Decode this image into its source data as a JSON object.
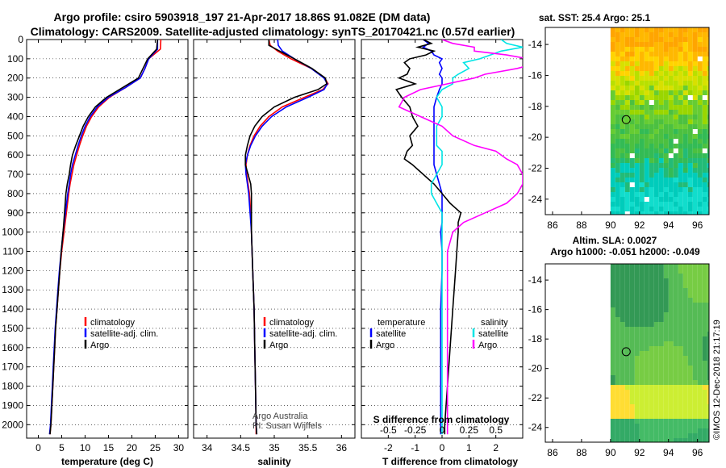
{
  "header": {
    "line1": "Argo profile: csiro 5903918_197 21-Apr-2017 18.86S 91.082E (DM data)",
    "line2": "Climatology: CARS2009. Satellite-adjusted climatology: synTS_20170421.nc (0.57d earlier)"
  },
  "colors": {
    "climatology": "#ff0000",
    "satellite": "#0000ff",
    "argo": "#000000",
    "s_satellite": "#00e5e5",
    "s_argo": "#ff00ff"
  },
  "chart_data": [
    {
      "type": "line",
      "title": "",
      "xlabel": "temperature (deg C)",
      "xticks": [
        0,
        5,
        10,
        15,
        20,
        25,
        30
      ],
      "xlim": [
        -2.5,
        32
      ],
      "ylim": [
        2070,
        0
      ],
      "yticks": [
        0,
        100,
        200,
        300,
        400,
        500,
        600,
        700,
        800,
        900,
        1000,
        1100,
        1200,
        1300,
        1400,
        1500,
        1600,
        1700,
        1800,
        1900,
        2000
      ],
      "legend": {
        "placement": "lower-center",
        "items": [
          {
            "label": "climatology",
            "color": "#ff0000"
          },
          {
            "label": "satellite-adj. clim.",
            "color": "#0000ff"
          },
          {
            "label": "Argo",
            "color": "#000000"
          }
        ]
      },
      "depth": [
        0,
        50,
        100,
        150,
        200,
        250,
        300,
        350,
        400,
        450,
        500,
        550,
        600,
        650,
        700,
        750,
        800,
        900,
        1000,
        1100,
        1200,
        1300,
        1400,
        1500,
        1600,
        1700,
        1800,
        1900,
        2000,
        2050
      ],
      "series": [
        {
          "name": "climatology",
          "color": "#ff0000",
          "values": [
            26.2,
            26.1,
            23.6,
            22.8,
            21.8,
            18.6,
            15.2,
            12.9,
            11.4,
            10.3,
            9.5,
            8.8,
            8.2,
            7.6,
            7.2,
            6.8,
            6.5,
            6.0,
            5.5,
            5.0,
            4.6,
            4.3,
            4.0,
            3.7,
            3.5,
            3.3,
            3.1,
            2.9,
            2.7,
            2.5
          ]
        },
        {
          "name": "satellite-adj. clim.",
          "color": "#0000ff",
          "values": [
            25.5,
            25.5,
            23.6,
            22.8,
            21.8,
            18.6,
            15.0,
            12.6,
            11.1,
            10.0,
            9.2,
            8.5,
            7.9,
            7.3,
            6.9,
            6.6,
            6.3,
            5.8,
            5.3,
            4.9,
            4.5,
            4.2,
            3.9,
            3.6,
            3.4,
            3.2,
            3.0,
            2.8,
            2.6,
            2.4
          ]
        },
        {
          "name": "Argo",
          "color": "#000000",
          "values": [
            25.5,
            25.3,
            23.4,
            22.4,
            21.4,
            18.0,
            14.6,
            12.2,
            10.7,
            9.6,
            8.8,
            8.0,
            7.3,
            6.9,
            6.6,
            6.2,
            5.9,
            5.6,
            5.3,
            4.9,
            4.6,
            4.3,
            4.0,
            3.7,
            3.5,
            3.3,
            3.1,
            2.9,
            2.7,
            2.5
          ]
        }
      ]
    },
    {
      "type": "line",
      "title": "",
      "xlabel": "salinity",
      "xticks": [
        34,
        34.5,
        35,
        35.5,
        36
      ],
      "xlim": [
        33.8,
        36.2
      ],
      "ylim": [
        2070,
        0
      ],
      "legend": {
        "placement": "lower-center",
        "items": [
          {
            "label": "climatology",
            "color": "#ff0000"
          },
          {
            "label": "satellite-adj. clim.",
            "color": "#0000ff"
          },
          {
            "label": "Argo",
            "color": "#000000"
          }
        ]
      },
      "annotation": [
        "Argo Australia",
        "PI: Susan Wijffels"
      ],
      "depth": [
        0,
        30,
        60,
        100,
        150,
        200,
        230,
        260,
        300,
        350,
        400,
        450,
        500,
        550,
        600,
        650,
        700,
        750,
        800,
        900,
        1000,
        1200,
        1400,
        1600,
        1800,
        2000,
        2050
      ],
      "series": [
        {
          "name": "climatology",
          "color": "#ff0000",
          "values": [
            34.92,
            34.94,
            35.05,
            35.25,
            35.55,
            35.75,
            35.8,
            35.72,
            35.45,
            35.12,
            34.92,
            34.79,
            34.7,
            34.64,
            34.6,
            34.58,
            34.59,
            34.61,
            34.63,
            34.65,
            34.66,
            34.68,
            34.7,
            34.71,
            34.72,
            34.73,
            34.73
          ]
        },
        {
          "name": "satellite-adj. clim.",
          "color": "#0000ff",
          "values": [
            35.05,
            35.06,
            35.12,
            35.3,
            35.55,
            35.74,
            35.79,
            35.74,
            35.5,
            35.18,
            34.96,
            34.82,
            34.72,
            34.65,
            34.6,
            34.57,
            34.58,
            34.6,
            34.62,
            34.64,
            34.66,
            34.68,
            34.7,
            34.71,
            34.72,
            34.73,
            34.74
          ]
        },
        {
          "name": "Argo",
          "color": "#000000",
          "values": [
            34.92,
            34.92,
            35.08,
            35.3,
            35.56,
            35.76,
            35.78,
            35.65,
            35.3,
            35.0,
            34.82,
            34.71,
            34.64,
            34.6,
            34.57,
            34.57,
            34.61,
            34.65,
            34.66,
            34.66,
            34.66,
            34.68,
            34.7,
            34.71,
            34.72,
            34.73,
            34.74
          ]
        }
      ]
    },
    {
      "type": "line",
      "title": "",
      "xlabel": "T difference from climatology",
      "xlabel2": "S difference from climatology",
      "xticks": [
        -2,
        -1,
        0,
        1,
        2
      ],
      "xticks2": [
        -0.5,
        -0.25,
        0,
        0.25,
        0.5
      ],
      "xlim": [
        -3,
        3
      ],
      "ylim": [
        2070,
        0
      ],
      "legend_left": {
        "title": "temperature",
        "items": [
          {
            "label": "satellite",
            "color": "#0000ff"
          },
          {
            "label": "Argo",
            "color": "#000000"
          }
        ]
      },
      "legend_right": {
        "title": "salinity",
        "items": [
          {
            "label": "satellite",
            "color": "#00e5e5"
          },
          {
            "label": "Argo",
            "color": "#ff00ff"
          }
        ]
      },
      "depth": [
        0,
        20,
        40,
        60,
        80,
        100,
        120,
        150,
        180,
        200,
        230,
        260,
        300,
        350,
        400,
        450,
        500,
        550,
        580,
        620,
        650,
        700,
        750,
        800,
        850,
        900,
        950,
        1000,
        1100,
        1200,
        1400,
        1600,
        1800,
        2000,
        2050
      ],
      "series": [
        {
          "name": "T satellite",
          "color": "#0000ff",
          "values": [
            -0.7,
            -0.5,
            -0.7,
            -0.4,
            -0.3,
            0.0,
            -0.1,
            0.0,
            -0.1,
            0.0,
            0.0,
            -0.1,
            -0.2,
            -0.3,
            -0.3,
            -0.3,
            -0.3,
            -0.3,
            -0.3,
            -0.3,
            -0.3,
            -0.2,
            -0.1,
            0.0,
            0.0,
            0.0,
            0.0,
            -0.05,
            0.0,
            0.0,
            -0.05,
            -0.05,
            -0.05,
            -0.05,
            -0.05
          ]
        },
        {
          "name": "T Argo",
          "color": "#000000",
          "values": [
            -0.7,
            -0.4,
            -0.9,
            -0.3,
            -0.6,
            -1.2,
            -1.4,
            -1.2,
            -1.3,
            -1.6,
            -1.0,
            -1.7,
            -1.5,
            -1.2,
            -1.1,
            -0.9,
            -1.2,
            -1.1,
            -1.3,
            -1.4,
            -1.1,
            -0.7,
            -0.3,
            0.0,
            0.3,
            0.7,
            0.6,
            0.6,
            0.55,
            0.5,
            0.4,
            0.3,
            0.2,
            0.1,
            0.1
          ]
        },
        {
          "name": "S satellite",
          "color": "#00e5e5",
          "values": [
            0.55,
            0.6,
            0.75,
            0.55,
            0.45,
            0.35,
            0.2,
            0.25,
            0.15,
            0.1,
            0.1,
            0.0,
            -0.05,
            0.0,
            0.0,
            -0.05,
            -0.05,
            -0.05,
            0.0,
            0.0,
            0.0,
            -0.05,
            -0.1,
            -0.1,
            -0.05,
            0.0,
            0.0,
            0.0,
            0.0,
            0.0,
            0.0,
            0.0,
            0.0,
            0.0,
            0.0
          ]
        },
        {
          "name": "S Argo",
          "color": "#ff00ff",
          "values": [
            0.0,
            0.1,
            0.3,
            0.3,
            0.6,
            0.8,
            0.9,
            0.7,
            0.4,
            0.3,
            0.05,
            -0.2,
            -0.35,
            -0.4,
            -0.2,
            0.0,
            0.1,
            0.3,
            0.5,
            0.6,
            0.7,
            0.75,
            0.75,
            0.7,
            0.6,
            0.4,
            0.2,
            0.1,
            0.05,
            0.05,
            0.05,
            0.05,
            0.05,
            0.05,
            0.05
          ]
        }
      ]
    },
    {
      "type": "heatmap",
      "title": "sat. SST: 25.4 Argo: 25.1",
      "xticks": [
        86,
        88,
        90,
        92,
        94,
        96
      ],
      "yticks": [
        -14,
        -16,
        -18,
        -20,
        -22,
        -24
      ],
      "xlim": [
        85.5,
        96.8
      ],
      "ylim": [
        -25,
        -12.9
      ],
      "data_lon_min": 90,
      "marker": {
        "lon": 91.082,
        "lat": -18.86
      }
    },
    {
      "type": "heatmap",
      "title": "Altim. SLA: 0.0027",
      "subtitle": "Argo h1000: -0.051 h2000: -0.049",
      "xticks": [
        86,
        88,
        90,
        92,
        94,
        96
      ],
      "yticks": [
        -14,
        -16,
        -18,
        -20,
        -22,
        -24
      ],
      "xlim": [
        85.5,
        96.8
      ],
      "ylim": [
        -25,
        -12.9
      ],
      "data_lon_min": 90,
      "marker": {
        "lon": 91.082,
        "lat": -18.86
      }
    }
  ],
  "footer": {
    "stamp": "©IMOS 12-Dec-2018 21:17:19"
  }
}
